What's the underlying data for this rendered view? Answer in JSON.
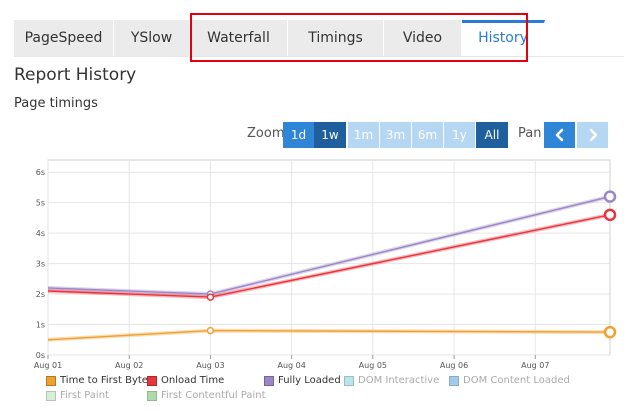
{
  "tabs": [
    {
      "label": "PageSpeed",
      "active": false
    },
    {
      "label": "YSlow",
      "active": false
    },
    {
      "label": "Waterfall",
      "active": false
    },
    {
      "label": "Timings",
      "active": false
    },
    {
      "label": "Video",
      "active": false
    },
    {
      "label": "History",
      "active": true
    }
  ],
  "heading": "Report History",
  "section": "Page timings",
  "zoom": {
    "label": "Zoom",
    "options": [
      "1d",
      "1w",
      "1m",
      "3m",
      "6m",
      "1y",
      "All"
    ],
    "selected": "1w"
  },
  "pan": {
    "label": "Pan",
    "left_icon": "chevron-left-icon",
    "right_icon": "chevron-right-icon"
  },
  "colors": {
    "accent": "#2b7bd4",
    "highlight": "#e3000f"
  },
  "chart_data": {
    "type": "line",
    "x_ticks": [
      "Aug 01",
      "Aug 02",
      "Aug 03",
      "Aug 04",
      "Aug 05",
      "Aug 06",
      "Aug 07"
    ],
    "y_ticks": [
      "0s",
      "1s",
      "2s",
      "3s",
      "4s",
      "5s",
      "6s"
    ],
    "ylim": [
      0,
      6.4
    ],
    "grid": true,
    "legend_position": "bottom",
    "series": [
      {
        "name": "Time to First Byte",
        "color": "#f0a030",
        "visible": true,
        "x": [
          "Aug 01",
          "Aug 03",
          "Aug 07 (late)"
        ],
        "values": [
          0.5,
          0.8,
          0.75
        ]
      },
      {
        "name": "Onload Time",
        "color": "#e8343c",
        "visible": true,
        "x": [
          "Aug 01",
          "Aug 03",
          "Aug 07 (late)"
        ],
        "values": [
          2.1,
          1.9,
          4.6
        ]
      },
      {
        "name": "Fully Loaded",
        "color": "#9c86c7",
        "visible": true,
        "x": [
          "Aug 01",
          "Aug 03",
          "Aug 07 (late)"
        ],
        "values": [
          2.2,
          2.0,
          5.2
        ]
      },
      {
        "name": "DOM Interactive",
        "color": "#9cd8e6",
        "visible": false
      },
      {
        "name": "DOM Content Loaded",
        "color": "#7ab6e3",
        "visible": false
      },
      {
        "name": "First Paint",
        "color": "#c9e8c8",
        "visible": false
      },
      {
        "name": "First Contentful Paint",
        "color": "#8ccc8a",
        "visible": false
      }
    ]
  }
}
